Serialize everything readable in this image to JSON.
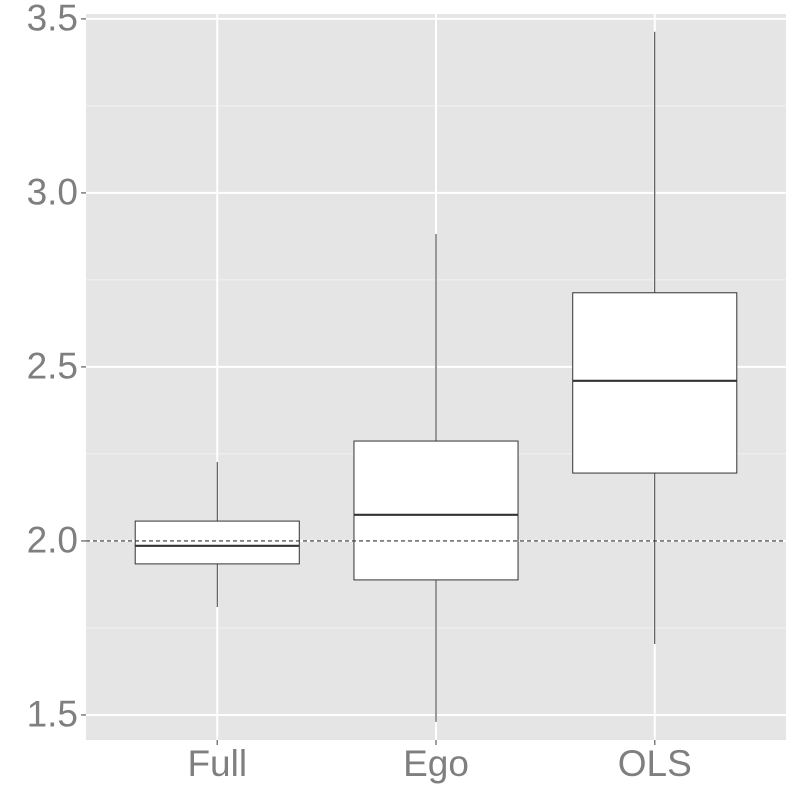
{
  "chart_data": {
    "type": "box",
    "categories": [
      "Full",
      "Ego",
      "OLS"
    ],
    "min": [
      1.81,
      1.48,
      1.704
    ],
    "q1": [
      1.934,
      1.888,
      2.195
    ],
    "median": [
      1.986,
      2.075,
      2.46
    ],
    "q3": [
      2.057,
      2.287,
      2.713
    ],
    "max": [
      2.227,
      2.882,
      3.463
    ],
    "color": "#ffffff",
    "ylim": [
      1.428,
      3.514
    ],
    "yticks": [
      1.5,
      {
        "value": 2,
        "label": "2.0"
      },
      2.5,
      {
        "value": 3,
        "label": "3.0"
      },
      3.5
    ],
    "minor_yticks": [
      1.75,
      2.25,
      2.75,
      3.25
    ],
    "reference_line": 2,
    "grid": true
  }
}
